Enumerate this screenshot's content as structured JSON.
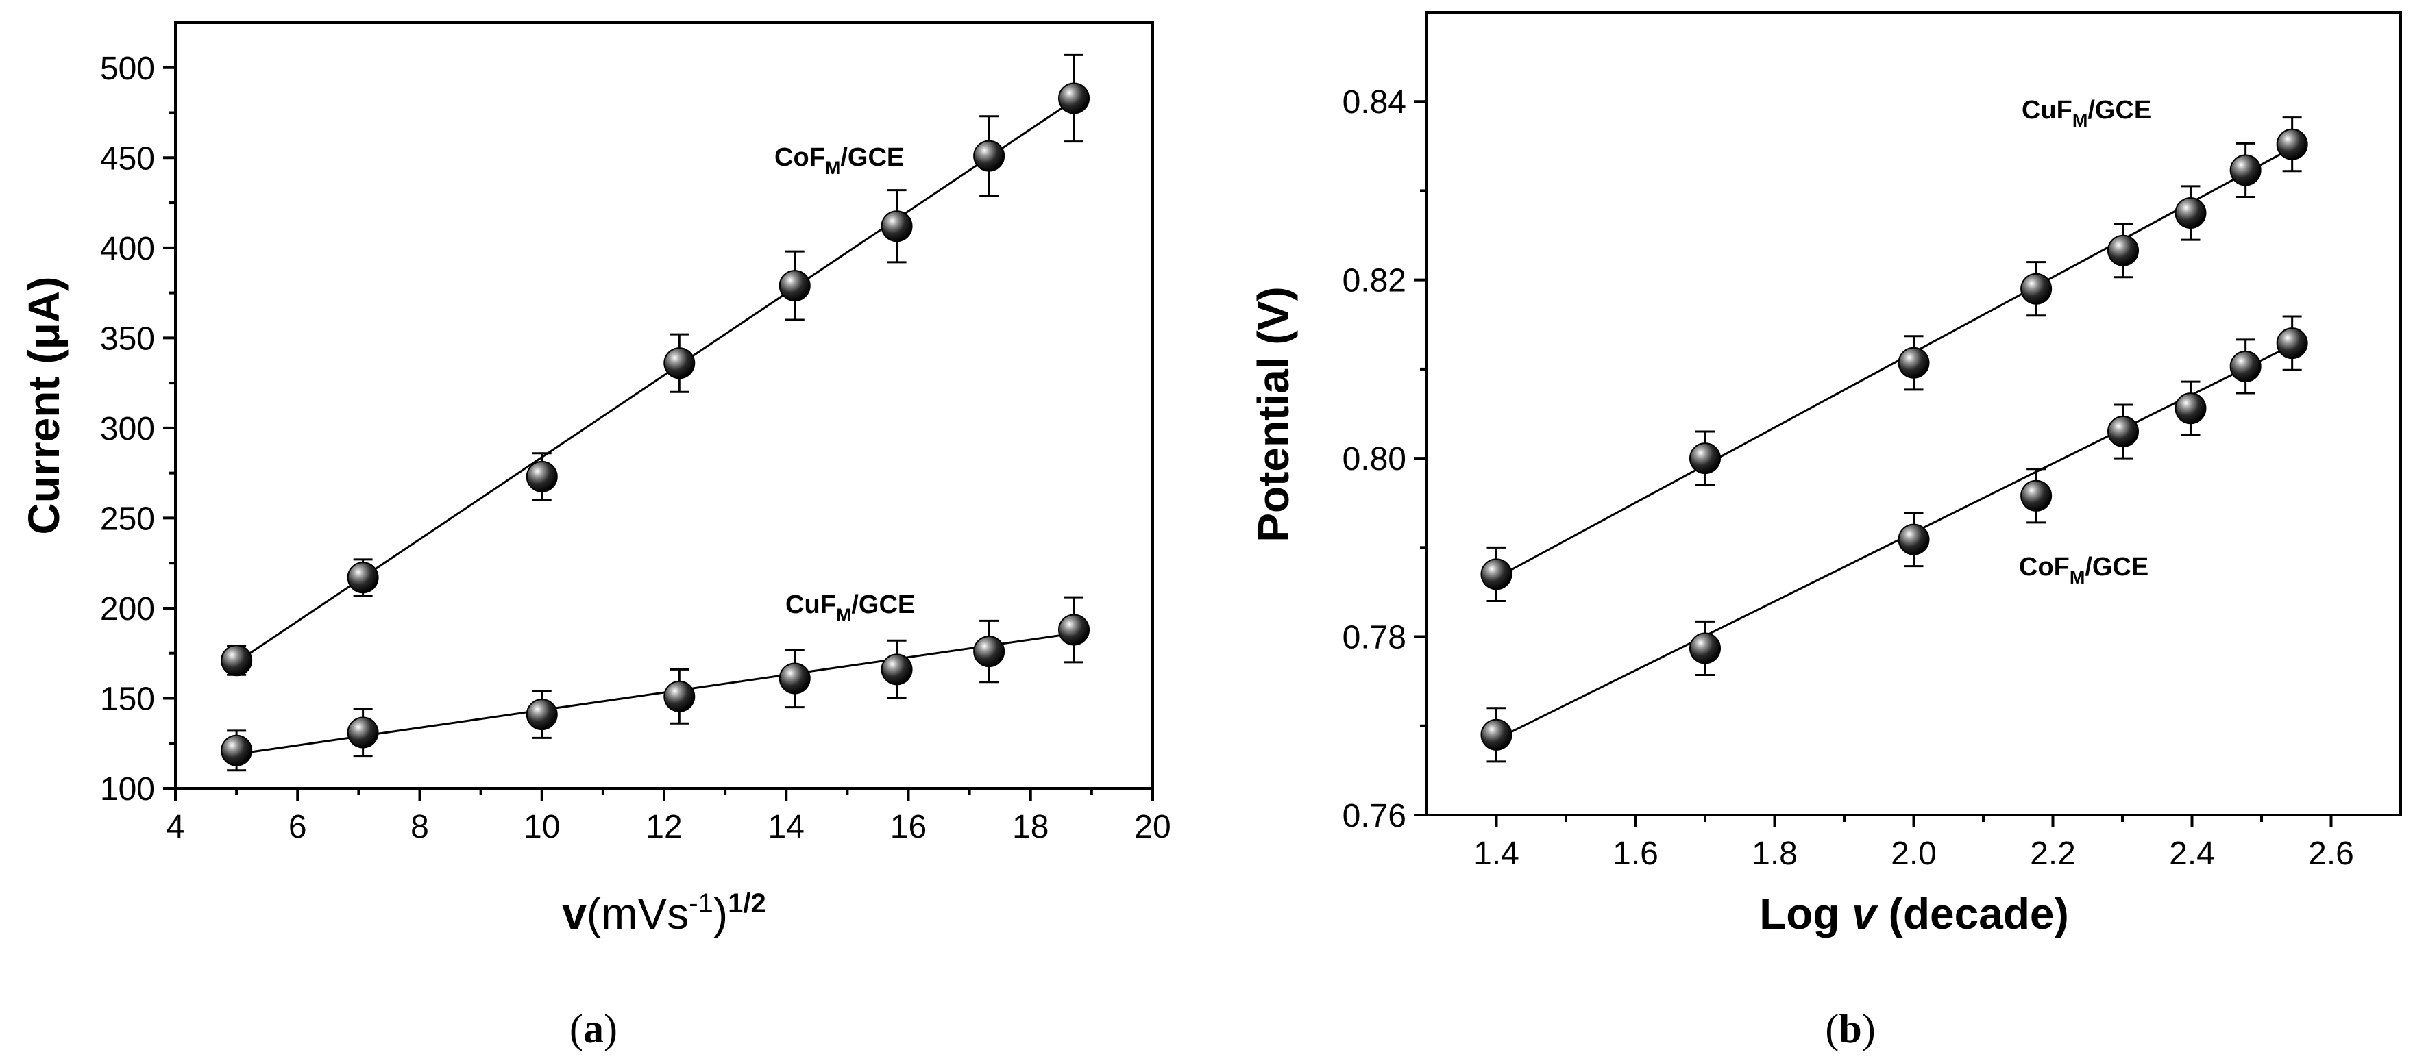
{
  "chart_data": [
    {
      "type": "scatter",
      "panel_label_prefix": "(",
      "panel_label_letter": "a",
      "panel_label_suffix": ")",
      "xlabel_prefix": "v",
      "xlabel_main": "(mVs",
      "xlabel_exp": "-1",
      "xlabel_close": ")",
      "xlabel_power": "1/2",
      "ylabel": "Current (μA)",
      "xlim": [
        4,
        20
      ],
      "ylim": [
        100,
        525
      ],
      "xticks": [
        4,
        6,
        8,
        10,
        12,
        14,
        16,
        18,
        20
      ],
      "yticks": [
        100,
        150,
        200,
        250,
        300,
        350,
        400,
        450,
        500
      ],
      "series": [
        {
          "name": "CoF",
          "subscript": "M",
          "suffix": "/GCE",
          "x": [
            5.0,
            7.07,
            10.0,
            12.25,
            14.14,
            15.81,
            17.32,
            18.71
          ],
          "y": [
            171,
            217,
            273,
            336,
            379,
            412,
            451,
            483
          ],
          "err": [
            8,
            10,
            13,
            16,
            19,
            20,
            22,
            24
          ],
          "fit": [
            [
              5.0,
              170
            ],
            [
              18.71,
              482
            ]
          ]
        },
        {
          "name": "CuF",
          "subscript": "M",
          "suffix": "/GCE",
          "x": [
            5.0,
            7.07,
            10.0,
            12.25,
            14.14,
            15.81,
            17.32,
            18.71
          ],
          "y": [
            121,
            131,
            141,
            151,
            161,
            166,
            176,
            188
          ],
          "err": [
            11,
            13,
            13,
            15,
            16,
            16,
            17,
            18
          ],
          "fit": [
            [
              5.0,
              119
            ],
            [
              18.71,
              186
            ]
          ]
        }
      ]
    },
    {
      "type": "scatter",
      "panel_label_prefix": "(",
      "panel_label_letter": "b",
      "panel_label_suffix": ")",
      "xlabel_main": "Log ",
      "xlabel_italic": "v",
      "xlabel_suffix": " (decade)",
      "ylabel": "Potential (V)",
      "xlim": [
        1.3,
        2.7
      ],
      "ylim": [
        0.76,
        0.85
      ],
      "xticks": [
        1.4,
        1.6,
        1.8,
        2.0,
        2.2,
        2.4,
        2.6
      ],
      "xtick_labels": [
        "1.4",
        "1.6",
        "1.8",
        "2.0",
        "2.2",
        "2.4",
        "2.6"
      ],
      "yticks": [
        0.76,
        0.78,
        0.8,
        0.82,
        0.84
      ],
      "ytick_labels": [
        "0.76",
        "0.78",
        "0.80",
        "0.82",
        "0.84"
      ],
      "series": [
        {
          "name": "CuF",
          "subscript": "M",
          "suffix": "/GCE",
          "x": [
            1.4,
            1.7,
            2.0,
            2.176,
            2.301,
            2.398,
            2.477,
            2.544
          ],
          "y": [
            0.787,
            0.8,
            0.8107,
            0.819,
            0.8233,
            0.8275,
            0.8323,
            0.8352
          ],
          "err": [
            0.003,
            0.003,
            0.003,
            0.003,
            0.003,
            0.003,
            0.003,
            0.003
          ],
          "fit": [
            [
              1.4,
              0.7866
            ],
            [
              2.544,
              0.8348
            ]
          ]
        },
        {
          "name": "CoF",
          "subscript": "M",
          "suffix": "/GCE",
          "x": [
            1.4,
            1.7,
            2.0,
            2.176,
            2.301,
            2.398,
            2.477,
            2.544
          ],
          "y": [
            0.769,
            0.7787,
            0.7909,
            0.7958,
            0.803,
            0.8056,
            0.8103,
            0.8129
          ],
          "err": [
            0.003,
            0.003,
            0.003,
            0.003,
            0.003,
            0.003,
            0.003,
            0.003
          ],
          "fit": [
            [
              1.4,
              0.7685
            ],
            [
              2.544,
              0.8127
            ]
          ]
        }
      ]
    }
  ]
}
